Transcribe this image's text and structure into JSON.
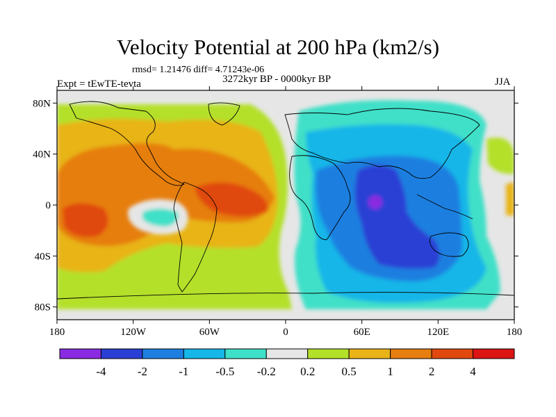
{
  "title": "Velocity Potential at 200 hPa (km2/s)",
  "stats": "rmsd= 1.21476 diff= 4.71243e-06",
  "expt": "Expt = tEwTE-tevta",
  "period": "3272kyr BP - 0000kyr BP",
  "season": "JJA",
  "lat_ticks": [
    {
      "label": "80N",
      "value": 80
    },
    {
      "label": "40N",
      "value": 40
    },
    {
      "label": "0",
      "value": 0
    },
    {
      "label": "40S",
      "value": -40
    },
    {
      "label": "80S",
      "value": -80
    }
  ],
  "lon_ticks": [
    {
      "label": "180",
      "value": -180
    },
    {
      "label": "120W",
      "value": -120
    },
    {
      "label": "60W",
      "value": -60
    },
    {
      "label": "0",
      "value": 0
    },
    {
      "label": "60E",
      "value": 60
    },
    {
      "label": "120E",
      "value": 120
    },
    {
      "label": "180",
      "value": 180
    }
  ],
  "colorbar": {
    "colors": [
      "#8a2be2",
      "#2b3fd4",
      "#1e7fe0",
      "#16b6e8",
      "#3fe0c8",
      "#e6e6e6",
      "#b4e02a",
      "#e8b418",
      "#e67e10",
      "#e0480e",
      "#dc1414"
    ],
    "labels": [
      "-4",
      "-2",
      "-1",
      "-0.5",
      "-0.2",
      "0.2",
      "0.5",
      "1",
      "2",
      "4"
    ]
  }
}
